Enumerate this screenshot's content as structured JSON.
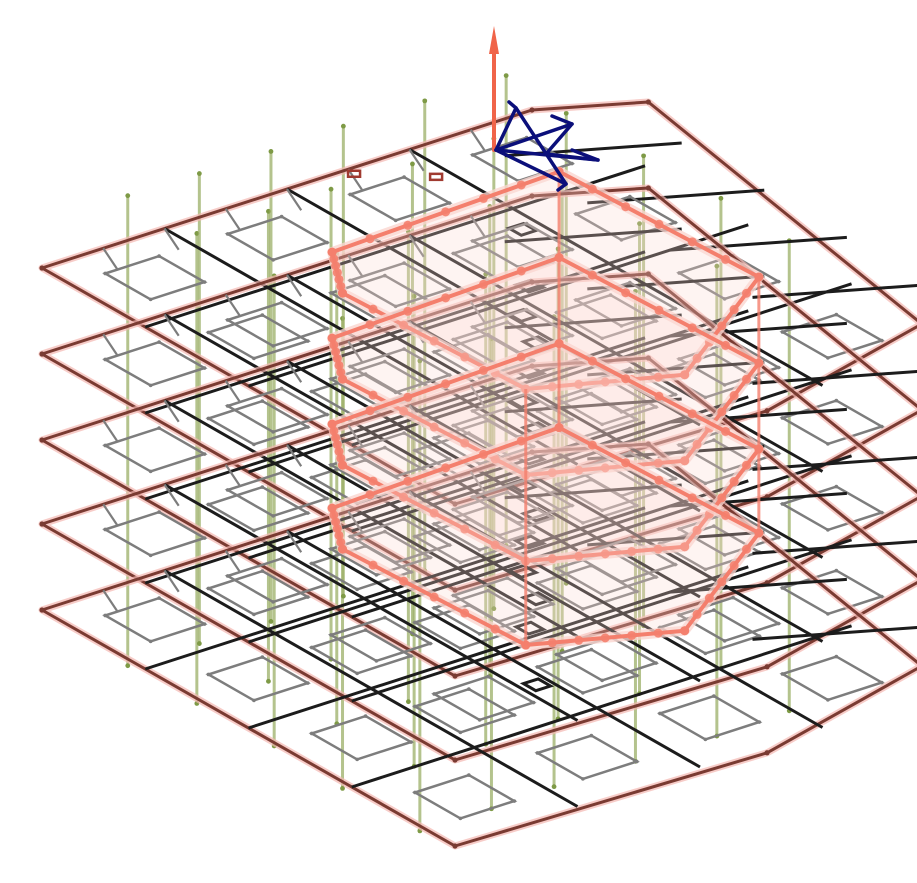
{
  "view": {
    "background": "#ffffff",
    "projection": "isometric",
    "floor_count": 5
  },
  "colors": {
    "slab_edge": "#7a3b32",
    "slab_edge_glow": "#f4b7b0",
    "beam_primary": "#1c1c1c",
    "beam_secondary": "#7d7d7d",
    "column": "#9cb067",
    "column_node": "#7e9a46",
    "core_wall": "#f47f6d",
    "core_wall_fill": "#fbd6d0",
    "axis_z": "#f06449",
    "gizmo": "#0b0f7a",
    "opening_marker": "#a03a30"
  },
  "icons": {
    "z_axis": "up-arrow-icon",
    "gizmo": "orientation-gizmo-icon"
  }
}
